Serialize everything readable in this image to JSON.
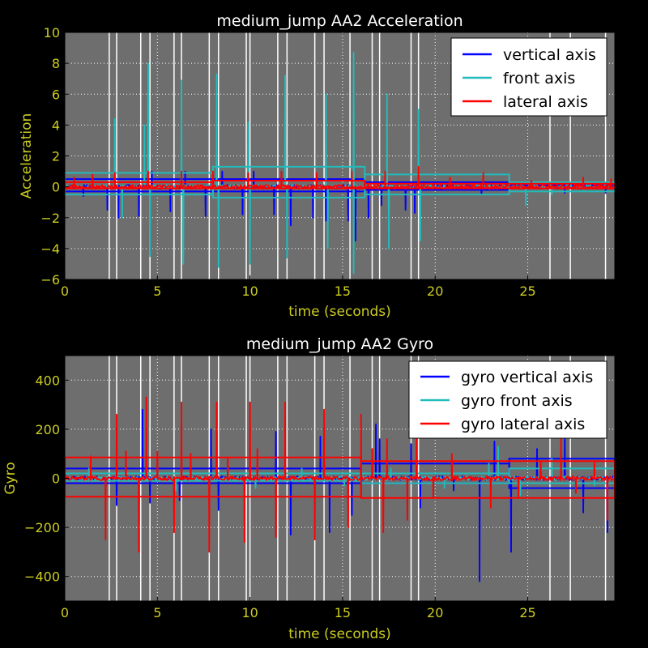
{
  "colors": {
    "background": "#000000",
    "plot_bg": "#6e6e6e",
    "tick_label": "#cccc22",
    "axis_label": "#cccc22",
    "title": "#ffffff",
    "grid": "#ffffff",
    "vertical": "#0000ff",
    "front": "#22bbbb",
    "lateral": "#ff0000",
    "event_lines": "#ffffff"
  },
  "chart_data": [
    {
      "type": "line",
      "title": "medium_jump AA2 Acceleration",
      "xlabel": "time (seconds)",
      "ylabel": "Acceleration",
      "xlim": [
        0,
        29.7
      ],
      "ylim": [
        -6,
        10
      ],
      "xticks": [
        "0",
        "5",
        "10",
        "15",
        "20",
        "25"
      ],
      "xtick_values": [
        0,
        5,
        10,
        15,
        20,
        25
      ],
      "yticks": [
        "−6",
        "−4",
        "−2",
        "0",
        "2",
        "4",
        "6",
        "8",
        "10"
      ],
      "ytick_values": [
        -6,
        -4,
        -2,
        0,
        2,
        4,
        6,
        8,
        10
      ],
      "grid": true,
      "legend_placement": "top-right",
      "event_lines_x": [
        2.4,
        2.8,
        4.1,
        4.6,
        5.9,
        6.3,
        7.8,
        8.3,
        9.8,
        10.0,
        11.5,
        12.0,
        13.5,
        14.0,
        15.4,
        16.6,
        17.0,
        18.7,
        19.1,
        26.2,
        27.3,
        29.2
      ],
      "series": [
        {
          "name": "vertical axis",
          "color": "#0000ff",
          "spikes": [
            [
              1.0,
              -0.6
            ],
            [
              2.3,
              -1.5
            ],
            [
              2.9,
              -2.0
            ],
            [
              4.0,
              -1.9
            ],
            [
              4.7,
              1.0
            ],
            [
              5.7,
              -1.6
            ],
            [
              6.5,
              1.0
            ],
            [
              7.6,
              -1.9
            ],
            [
              8.5,
              1.0
            ],
            [
              9.6,
              -1.8
            ],
            [
              10.2,
              1.0
            ],
            [
              11.3,
              -1.8
            ],
            [
              12.2,
              -2.5
            ],
            [
              13.4,
              -2.0
            ],
            [
              14.1,
              -2.2
            ],
            [
              15.3,
              -2.2
            ],
            [
              15.7,
              -3.5
            ],
            [
              16.4,
              -2.0
            ],
            [
              17.1,
              -1.2
            ],
            [
              18.4,
              -1.5
            ],
            [
              18.9,
              -1.7
            ],
            [
              22.5,
              -0.5
            ],
            [
              27.0,
              -0.4
            ],
            [
              29.2,
              -0.4
            ]
          ],
          "bands": [
            [
              0,
              16.2,
              -0.3,
              0.5
            ],
            [
              16.2,
              24.0,
              -0.2,
              0.3
            ],
            [
              24.0,
              29.7,
              -0.1,
              0.1
            ]
          ]
        },
        {
          "name": "front axis",
          "color": "#22bbbb",
          "spikes": [
            [
              2.7,
              4.4
            ],
            [
              3.1,
              -2.0
            ],
            [
              4.3,
              4.0
            ],
            [
              4.5,
              8.0
            ],
            [
              4.6,
              -4.5
            ],
            [
              6.3,
              6.9
            ],
            [
              6.4,
              -5.0
            ],
            [
              8.2,
              7.3
            ],
            [
              8.3,
              -5.2
            ],
            [
              9.9,
              4.2
            ],
            [
              10.0,
              -5.0
            ],
            [
              11.9,
              7.2
            ],
            [
              12.0,
              -4.6
            ],
            [
              14.1,
              6.0
            ],
            [
              14.2,
              -4.0
            ],
            [
              15.6,
              8.7
            ],
            [
              15.6,
              -5.6
            ],
            [
              17.4,
              6.0
            ],
            [
              17.5,
              -4.0
            ],
            [
              19.1,
              5.0
            ],
            [
              19.2,
              -3.5
            ],
            [
              24.9,
              -1.2
            ],
            [
              26.3,
              -0.5
            ]
          ],
          "bands": [
            [
              0,
              8.0,
              -0.5,
              0.9
            ],
            [
              8.0,
              16.2,
              -0.7,
              1.3
            ],
            [
              16.2,
              24.0,
              -0.5,
              0.8
            ],
            [
              24.0,
              29.7,
              -0.3,
              0.3
            ]
          ]
        },
        {
          "name": "lateral axis",
          "color": "#ff0000",
          "spikes": [
            [
              0.5,
              0.6
            ],
            [
              1.5,
              0.8
            ],
            [
              2.7,
              0.9
            ],
            [
              4.5,
              1.0
            ],
            [
              6.3,
              1.0
            ],
            [
              8.0,
              1.0
            ],
            [
              9.9,
              0.9
            ],
            [
              11.7,
              1.0
            ],
            [
              13.6,
              0.9
            ],
            [
              15.5,
              1.0
            ],
            [
              17.3,
              1.0
            ],
            [
              19.1,
              1.3
            ],
            [
              20.8,
              0.6
            ],
            [
              22.6,
              0.9
            ],
            [
              25.2,
              0.4
            ],
            [
              28.0,
              0.6
            ],
            [
              29.5,
              0.5
            ]
          ],
          "bands": [
            [
              0,
              8.0,
              -0.1,
              0.3
            ],
            [
              8.0,
              16.2,
              -0.1,
              0.4
            ],
            [
              16.2,
              29.7,
              -0.1,
              0.2
            ]
          ]
        }
      ]
    },
    {
      "type": "line",
      "title": "medium_jump AA2 Gyro",
      "xlabel": "time (seconds)",
      "ylabel": "Gyro",
      "xlim": [
        0,
        29.7
      ],
      "ylim": [
        -500,
        500
      ],
      "xticks": [
        "0",
        "5",
        "10",
        "15",
        "20",
        "25"
      ],
      "xtick_values": [
        0,
        5,
        10,
        15,
        20,
        25
      ],
      "yticks": [
        "−400",
        "−200",
        "0",
        "200",
        "400"
      ],
      "ytick_values": [
        -400,
        -200,
        0,
        200,
        400
      ],
      "grid": true,
      "legend_placement": "top-right",
      "event_lines_x": [
        2.4,
        2.8,
        4.1,
        4.6,
        5.9,
        6.3,
        7.8,
        8.3,
        9.8,
        10.0,
        11.5,
        12.0,
        13.5,
        14.0,
        15.4,
        16.6,
        17.0,
        18.7,
        19.1,
        26.2,
        27.3,
        29.2
      ],
      "series": [
        {
          "name": "gyro vertical axis",
          "color": "#0000ff",
          "spikes": [
            [
              2.8,
              -110
            ],
            [
              4.2,
              280
            ],
            [
              4.6,
              -100
            ],
            [
              6.2,
              -90
            ],
            [
              7.9,
              200
            ],
            [
              8.3,
              -130
            ],
            [
              11.4,
              190
            ],
            [
              12.2,
              -230
            ],
            [
              13.8,
              170
            ],
            [
              14.3,
              -220
            ],
            [
              15.5,
              -150
            ],
            [
              16.8,
              220
            ],
            [
              17.0,
              160
            ],
            [
              18.7,
              140
            ],
            [
              19.2,
              -120
            ],
            [
              21.0,
              -50
            ],
            [
              22.4,
              -420
            ],
            [
              23.2,
              150
            ],
            [
              24.1,
              -300
            ],
            [
              25.5,
              120
            ],
            [
              27.0,
              160
            ],
            [
              28.0,
              -140
            ],
            [
              29.3,
              -220
            ]
          ],
          "bands": [
            [
              0,
              16.0,
              -20,
              40
            ],
            [
              16.0,
              24.0,
              -20,
              60
            ],
            [
              24.0,
              29.7,
              -40,
              80
            ]
          ]
        },
        {
          "name": "gyro front axis",
          "color": "#22bbbb",
          "spikes": [
            [
              1.3,
              40
            ],
            [
              4.4,
              60
            ],
            [
              6.0,
              -50
            ],
            [
              8.8,
              50
            ],
            [
              10.3,
              -40
            ],
            [
              12.8,
              40
            ],
            [
              15.1,
              -30
            ],
            [
              17.6,
              40
            ],
            [
              20.5,
              -40
            ],
            [
              22.9,
              60
            ],
            [
              23.4,
              130
            ],
            [
              24.6,
              -70
            ],
            [
              26.3,
              80
            ],
            [
              28.6,
              -30
            ]
          ],
          "bands": [
            [
              0,
              16.0,
              -10,
              20
            ],
            [
              16.0,
              24.0,
              -20,
              20
            ],
            [
              24.0,
              29.7,
              -20,
              40
            ]
          ]
        },
        {
          "name": "gyro lateral axis",
          "color": "#ff0000",
          "spikes": [
            [
              1.4,
              90
            ],
            [
              2.2,
              -250
            ],
            [
              2.8,
              260
            ],
            [
              3.3,
              110
            ],
            [
              4.0,
              -300
            ],
            [
              4.4,
              330
            ],
            [
              5.0,
              110
            ],
            [
              5.9,
              -220
            ],
            [
              6.3,
              310
            ],
            [
              6.8,
              100
            ],
            [
              7.8,
              -300
            ],
            [
              8.2,
              310
            ],
            [
              8.8,
              80
            ],
            [
              9.7,
              -260
            ],
            [
              10.0,
              310
            ],
            [
              10.4,
              120
            ],
            [
              11.4,
              -240
            ],
            [
              11.9,
              310
            ],
            [
              13.5,
              -250
            ],
            [
              14.0,
              280
            ],
            [
              15.3,
              -200
            ],
            [
              16.0,
              260
            ],
            [
              16.6,
              120
            ],
            [
              17.2,
              -220
            ],
            [
              17.4,
              160
            ],
            [
              18.5,
              -170
            ],
            [
              19.0,
              190
            ],
            [
              19.9,
              -80
            ],
            [
              20.9,
              100
            ],
            [
              23.0,
              -120
            ],
            [
              24.5,
              -80
            ],
            [
              25.7,
              70
            ],
            [
              26.8,
              180
            ],
            [
              27.6,
              -60
            ],
            [
              28.6,
              70
            ],
            [
              29.3,
              -170
            ]
          ],
          "bands": [
            [
              0,
              16.0,
              -75,
              85
            ],
            [
              16.0,
              29.7,
              -80,
              70
            ]
          ]
        }
      ]
    }
  ]
}
